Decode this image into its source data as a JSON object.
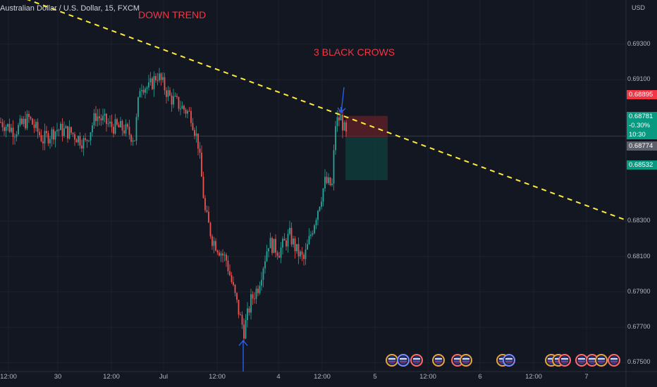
{
  "header": {
    "title": "Australian Dollar / U.S. Dollar, 15, FXCM",
    "currency": "USD"
  },
  "annotations": {
    "down_trend": "DOWN TREND",
    "three_black_crows": "3 BLACK CROWS"
  },
  "price_badges": {
    "stop": "0.68895",
    "current": "0.68781",
    "change": "-0.30%",
    "countdown": "10:30",
    "entry": "0.68774",
    "target": "0.68532"
  },
  "colors": {
    "background": "#131722",
    "bull": "#26a69a",
    "bear": "#ef5350",
    "trendline": "#ffeb3b",
    "annotation": "#f23645",
    "arrow": "#2962ff",
    "stop_zone": "#5b1f27",
    "target_zone": "#113b39"
  },
  "chart_data": {
    "type": "candlestick",
    "symbol": "AUD/USD",
    "interval": "15",
    "source": "FXCM",
    "ylim": [
      0.6745,
      0.6955
    ],
    "y_ticks": [
      "0.69300",
      "0.69100",
      "0.68300",
      "0.68100",
      "0.67900",
      "0.67700",
      "0.67500"
    ],
    "x_ticks": [
      "12:00",
      "30",
      "12:00",
      "Jul",
      "12:00",
      "4",
      "12:00",
      "5",
      "12:00",
      "6",
      "12:00",
      "7"
    ],
    "price_path": [
      {
        "t": 0,
        "p": 0.6886
      },
      {
        "t": 20,
        "p": 0.6881
      },
      {
        "t": 40,
        "p": 0.6888
      },
      {
        "t": 60,
        "p": 0.6876
      },
      {
        "t": 80,
        "p": 0.6882
      },
      {
        "t": 100,
        "p": 0.688
      },
      {
        "t": 120,
        "p": 0.6874
      },
      {
        "t": 135,
        "p": 0.689
      },
      {
        "t": 155,
        "p": 0.6884
      },
      {
        "t": 175,
        "p": 0.6882
      },
      {
        "t": 190,
        "p": 0.6877
      },
      {
        "t": 198,
        "p": 0.6908
      },
      {
        "t": 210,
        "p": 0.6905
      },
      {
        "t": 222,
        "p": 0.6913
      },
      {
        "t": 240,
        "p": 0.69
      },
      {
        "t": 255,
        "p": 0.6895
      },
      {
        "t": 270,
        "p": 0.689
      },
      {
        "t": 280,
        "p": 0.6874
      },
      {
        "t": 290,
        "p": 0.6835
      },
      {
        "t": 300,
        "p": 0.682
      },
      {
        "t": 320,
        "p": 0.6808
      },
      {
        "t": 340,
        "p": 0.6775
      },
      {
        "t": 345,
        "p": 0.6768
      },
      {
        "t": 355,
        "p": 0.6785
      },
      {
        "t": 365,
        "p": 0.6793
      },
      {
        "t": 380,
        "p": 0.6818
      },
      {
        "t": 395,
        "p": 0.6813
      },
      {
        "t": 410,
        "p": 0.6822
      },
      {
        "t": 420,
        "p": 0.6813
      },
      {
        "t": 430,
        "p": 0.6808
      },
      {
        "t": 445,
        "p": 0.683
      },
      {
        "t": 460,
        "p": 0.6852
      },
      {
        "t": 470,
        "p": 0.685
      },
      {
        "t": 475,
        "p": 0.6885
      },
      {
        "t": 482,
        "p": 0.6889
      },
      {
        "t": 490,
        "p": 0.6878
      }
    ],
    "trendline": {
      "start": {
        "t": 0,
        "p": 0.6961
      },
      "end": {
        "t": 885,
        "p": 0.6831
      }
    },
    "position": {
      "stop": 0.68895,
      "entry": 0.68774,
      "target": 0.68532
    },
    "markers": [
      {
        "label": "3 BLACK CROWS",
        "t": 484,
        "price": 0.6889
      },
      {
        "label": "swing-low",
        "t": 345,
        "price": 0.6768
      }
    ]
  }
}
